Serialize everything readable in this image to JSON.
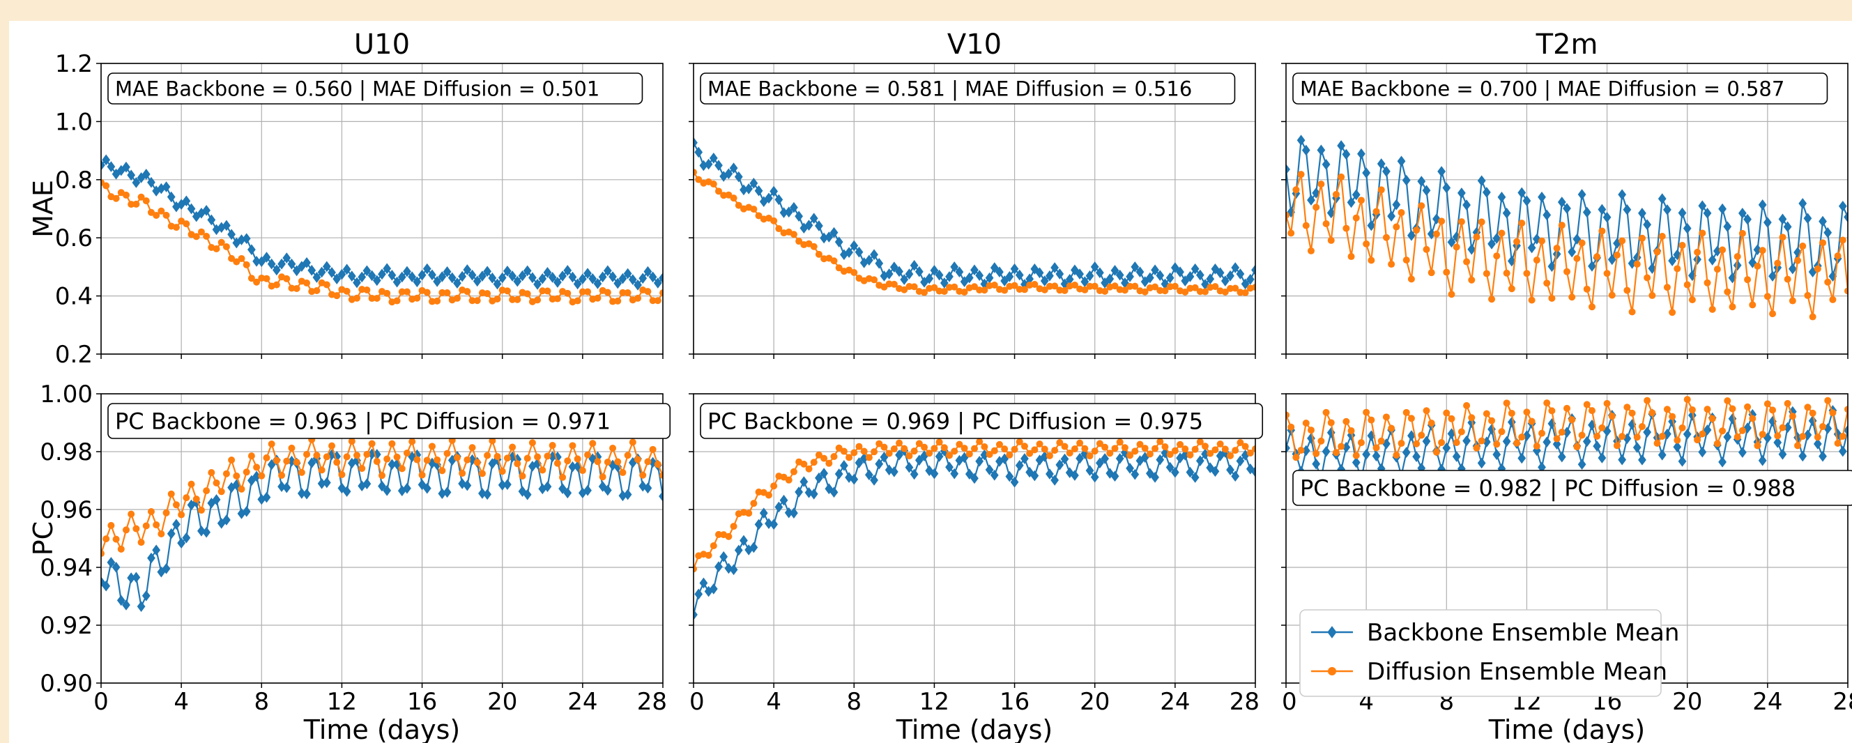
{
  "chart_data": {
    "type": "line",
    "layout": "2 rows x 3 columns of line panels",
    "columns": [
      "U10",
      "V10",
      "T2m"
    ],
    "rows": [
      {
        "ylabel": "MAE",
        "ylim": [
          0.2,
          1.2
        ],
        "yticks": [
          "0.2",
          "0.4",
          "0.6",
          "0.8",
          "1.0",
          "1.2"
        ]
      },
      {
        "ylabel": "PC",
        "ylim": [
          0.9,
          1.0
        ],
        "yticks": [
          "0.90",
          "0.92",
          "0.94",
          "0.96",
          "0.98",
          "1.00"
        ]
      }
    ],
    "xlabel": "Time (days)",
    "xlim": [
      0,
      28
    ],
    "xticks": [
      "0",
      "4",
      "8",
      "12",
      "16",
      "20",
      "24",
      "28"
    ],
    "grid": true,
    "legend": {
      "placement": "lower-left of T2m PC panel",
      "entries": [
        "Backbone Ensemble Mean",
        "Diffusion Ensemble Mean"
      ]
    },
    "series_colors": {
      "Backbone Ensemble Mean": "#1f77b4",
      "Diffusion Ensemble Mean": "#ff7f0e"
    },
    "series_markers": {
      "Backbone Ensemble Mean": "diamond",
      "Diffusion Ensemble Mean": "circle"
    },
    "annotations": [
      "MAE Backbone = 0.560 | MAE Diffusion = 0.501",
      "MAE Backbone = 0.581 | MAE Diffusion = 0.516",
      "MAE Backbone = 0.700 | MAE Diffusion = 0.587",
      "PC Backbone = 0.963 | PC Diffusion = 0.971",
      "PC Backbone = 0.969 | PC Diffusion = 0.975",
      "PC Backbone = 0.982 | PC Diffusion = 0.988"
    ],
    "sampling": {
      "points_per_day": 4,
      "points": 113
    },
    "panels": [
      {
        "row": 0,
        "col": 0,
        "variable": "U10",
        "metric": "MAE",
        "series": [
          {
            "name": "Backbone Ensemble Mean",
            "anchors": [
              [
                0,
                0.85
              ],
              [
                2,
                0.81
              ],
              [
                4,
                0.72
              ],
              [
                6,
                0.64
              ],
              [
                7,
                0.59
              ],
              [
                8,
                0.52
              ],
              [
                10,
                0.5
              ],
              [
                12,
                0.47
              ],
              [
                14,
                0.47
              ],
              [
                28,
                0.46
              ]
            ],
            "oscillation": 0.02
          },
          {
            "name": "Diffusion Ensemble Mean",
            "anchors": [
              [
                0,
                0.77
              ],
              [
                2,
                0.72
              ],
              [
                4,
                0.64
              ],
              [
                6,
                0.57
              ],
              [
                7,
                0.51
              ],
              [
                8,
                0.45
              ],
              [
                10,
                0.44
              ],
              [
                12,
                0.41
              ],
              [
                14,
                0.4
              ],
              [
                28,
                0.4
              ]
            ],
            "oscillation": 0.02
          }
        ]
      },
      {
        "row": 0,
        "col": 1,
        "variable": "V10",
        "metric": "MAE",
        "series": [
          {
            "name": "Backbone Ensemble Mean",
            "anchors": [
              [
                0,
                0.9
              ],
              [
                2,
                0.81
              ],
              [
                4,
                0.73
              ],
              [
                6,
                0.64
              ],
              [
                8,
                0.55
              ],
              [
                10,
                0.48
              ],
              [
                12,
                0.47
              ],
              [
                16,
                0.47
              ],
              [
                28,
                0.47
              ]
            ],
            "oscillation": 0.025
          },
          {
            "name": "Diffusion Ensemble Mean",
            "anchors": [
              [
                0,
                0.82
              ],
              [
                2,
                0.73
              ],
              [
                4,
                0.65
              ],
              [
                6,
                0.56
              ],
              [
                8,
                0.47
              ],
              [
                10,
                0.43
              ],
              [
                12,
                0.42
              ],
              [
                16,
                0.43
              ],
              [
                28,
                0.42
              ]
            ],
            "oscillation": 0.01
          }
        ]
      },
      {
        "row": 0,
        "col": 2,
        "variable": "T2m",
        "metric": "MAE",
        "series": [
          {
            "name": "Backbone Ensemble Mean",
            "anchors": [
              [
                0,
                0.8
              ],
              [
                2,
                0.82
              ],
              [
                4,
                0.78
              ],
              [
                8,
                0.69
              ],
              [
                12,
                0.64
              ],
              [
                16,
                0.62
              ],
              [
                20,
                0.6
              ],
              [
                24,
                0.59
              ],
              [
                28,
                0.58
              ]
            ],
            "oscillation": 0.12
          },
          {
            "name": "Diffusion Ensemble Mean",
            "anchors": [
              [
                0,
                0.7
              ],
              [
                2,
                0.69
              ],
              [
                4,
                0.64
              ],
              [
                8,
                0.55
              ],
              [
                12,
                0.51
              ],
              [
                16,
                0.49
              ],
              [
                20,
                0.48
              ],
              [
                24,
                0.47
              ],
              [
                28,
                0.47
              ]
            ],
            "oscillation": 0.12
          }
        ]
      },
      {
        "row": 1,
        "col": 0,
        "variable": "U10",
        "metric": "PC",
        "series": [
          {
            "name": "Backbone Ensemble Mean",
            "anchors": [
              [
                0,
                0.938
              ],
              [
                1,
                0.935
              ],
              [
                2,
                0.93
              ],
              [
                3,
                0.944
              ],
              [
                4,
                0.953
              ],
              [
                6,
                0.961
              ],
              [
                7,
                0.962
              ],
              [
                8,
                0.97
              ],
              [
                10,
                0.972
              ],
              [
                12,
                0.973
              ],
              [
                16,
                0.972
              ],
              [
                20,
                0.972
              ],
              [
                28,
                0.971
              ]
            ],
            "oscillation": 0.007
          },
          {
            "name": "Diffusion Ensemble Mean",
            "anchors": [
              [
                0,
                0.95
              ],
              [
                2,
                0.953
              ],
              [
                4,
                0.962
              ],
              [
                6,
                0.97
              ],
              [
                8,
                0.976
              ],
              [
                10,
                0.978
              ],
              [
                14,
                0.978
              ],
              [
                28,
                0.977
              ]
            ],
            "oscillation": 0.005
          }
        ]
      },
      {
        "row": 1,
        "col": 1,
        "variable": "V10",
        "metric": "PC",
        "series": [
          {
            "name": "Backbone Ensemble Mean",
            "anchors": [
              [
                0,
                0.928
              ],
              [
                2,
                0.943
              ],
              [
                4,
                0.958
              ],
              [
                6,
                0.968
              ],
              [
                8,
                0.973
              ],
              [
                10,
                0.976
              ],
              [
                12,
                0.976
              ],
              [
                16,
                0.974
              ],
              [
                20,
                0.975
              ],
              [
                28,
                0.976
              ]
            ],
            "oscillation": 0.004
          },
          {
            "name": "Diffusion Ensemble Mean",
            "anchors": [
              [
                0,
                0.94
              ],
              [
                2,
                0.955
              ],
              [
                4,
                0.969
              ],
              [
                6,
                0.977
              ],
              [
                8,
                0.98
              ],
              [
                10,
                0.981
              ],
              [
                16,
                0.981
              ],
              [
                28,
                0.981
              ]
            ],
            "oscillation": 0.002
          }
        ]
      },
      {
        "row": 1,
        "col": 2,
        "variable": "T2m",
        "metric": "PC",
        "series": [
          {
            "name": "Backbone Ensemble Mean",
            "anchors": [
              [
                0,
                0.979
              ],
              [
                4,
                0.979
              ],
              [
                8,
                0.981
              ],
              [
                12,
                0.983
              ],
              [
                16,
                0.984
              ],
              [
                20,
                0.985
              ],
              [
                24,
                0.985
              ],
              [
                28,
                0.986
              ]
            ],
            "oscillation": 0.007
          },
          {
            "name": "Diffusion Ensemble Mean",
            "anchors": [
              [
                0,
                0.985
              ],
              [
                4,
                0.986
              ],
              [
                8,
                0.988
              ],
              [
                12,
                0.989
              ],
              [
                16,
                0.99
              ],
              [
                20,
                0.99
              ],
              [
                24,
                0.99
              ],
              [
                28,
                0.99
              ]
            ],
            "oscillation": 0.007
          }
        ]
      }
    ]
  }
}
